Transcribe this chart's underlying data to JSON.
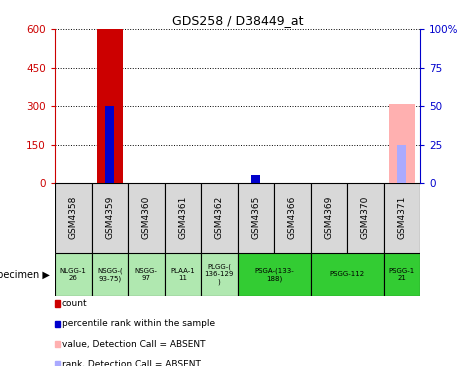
{
  "title": "GDS258 / D38449_at",
  "samples": [
    "GSM4358",
    "GSM4359",
    "GSM4360",
    "GSM4361",
    "GSM4362",
    "GSM4365",
    "GSM4366",
    "GSM4369",
    "GSM4370",
    "GSM4371"
  ],
  "bar_values": [
    0,
    600,
    0,
    0,
    0,
    0,
    0,
    0,
    0,
    0
  ],
  "bar_color": "#cc0000",
  "absent_bar_values": [
    0,
    0,
    0,
    0,
    0,
    0,
    0,
    0,
    0,
    310
  ],
  "absent_bar_color": "#ffb0b0",
  "rank_values": [
    0,
    50,
    0,
    0,
    0,
    5,
    0,
    0,
    0,
    0
  ],
  "rank_color": "#0000cc",
  "absent_rank_values": [
    0,
    0,
    0,
    0,
    0,
    0,
    0,
    0,
    0,
    25
  ],
  "absent_rank_color": "#aaaaff",
  "ylim_left": [
    0,
    600
  ],
  "ylim_right": [
    0,
    100
  ],
  "yticks_left": [
    0,
    150,
    300,
    450,
    600
  ],
  "yticks_right": [
    0,
    25,
    50,
    75,
    100
  ],
  "ytick_labels_left": [
    "0",
    "150",
    "300",
    "450",
    "600"
  ],
  "ytick_labels_right": [
    "0",
    "25",
    "50",
    "75",
    "100%"
  ],
  "left_axis_color": "#cc0000",
  "right_axis_color": "#0000cc",
  "specimen_groups": [
    {
      "label": "NLGG-1\n26",
      "color": "#b0e8b0",
      "span": [
        0,
        1
      ]
    },
    {
      "label": "NSGG-(\n93-75)",
      "color": "#b0e8b0",
      "span": [
        1,
        2
      ]
    },
    {
      "label": "NSGG-\n97",
      "color": "#b0e8b0",
      "span": [
        2,
        3
      ]
    },
    {
      "label": "PLAA-1\n11",
      "color": "#b0e8b0",
      "span": [
        3,
        4
      ]
    },
    {
      "label": "PLGG-(\n136-129\n)",
      "color": "#b0e8b0",
      "span": [
        4,
        5
      ]
    },
    {
      "label": "PSGA-(133-\n188)",
      "color": "#33cc33",
      "span": [
        5,
        7
      ]
    },
    {
      "label": "PSGG-112",
      "color": "#33cc33",
      "span": [
        7,
        9
      ]
    },
    {
      "label": "PSGG-1\n21",
      "color": "#33cc33",
      "span": [
        9,
        10
      ]
    }
  ],
  "legend_items": [
    {
      "color": "#cc0000",
      "label": "count"
    },
    {
      "color": "#0000cc",
      "label": "percentile rank within the sample"
    },
    {
      "color": "#ffb0b0",
      "label": "value, Detection Call = ABSENT"
    },
    {
      "color": "#aaaaff",
      "label": "rank, Detection Call = ABSENT"
    }
  ],
  "bar_width": 0.7,
  "rank_bar_width": 0.25
}
